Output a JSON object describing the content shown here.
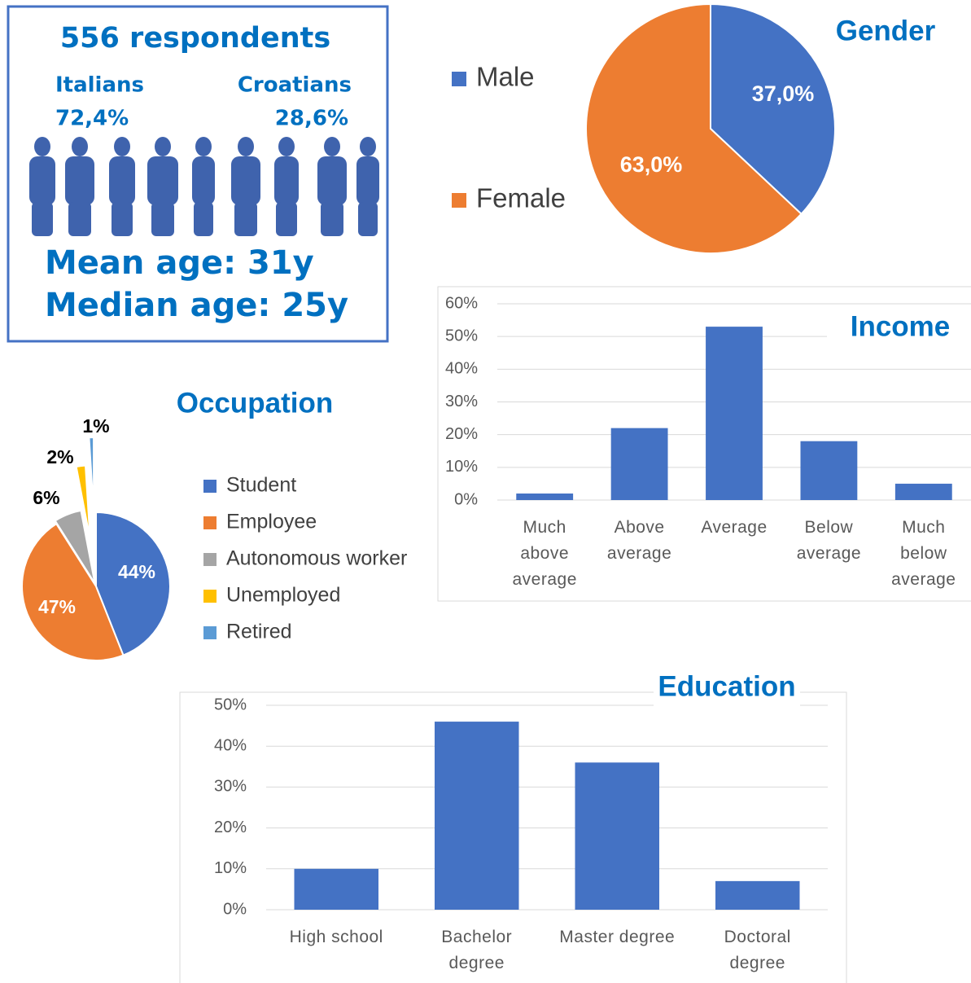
{
  "info": {
    "respondents": "556 respondents",
    "italians": "Italians",
    "italians_share": "72,4%",
    "croatians": "Croatians",
    "croatians_share": "28,6%",
    "mean_age": "Mean age: 31y",
    "median_age": "Median age: 25y"
  },
  "chart_data": [
    {
      "type": "pie",
      "title": "Gender",
      "categories": [
        "Male",
        "Female"
      ],
      "values": [
        37.0,
        63.0
      ],
      "value_labels": [
        "37,0%",
        "63,0%"
      ],
      "colors": [
        "#4472c4",
        "#ed7d31"
      ]
    },
    {
      "type": "pie",
      "title": "Occupation",
      "categories": [
        "Student",
        "Employee",
        "Autonomous worker",
        "Unemployed",
        "Retired"
      ],
      "values": [
        44,
        47,
        6,
        2,
        1
      ],
      "value_labels": [
        "44%",
        "47%",
        "6%",
        "2%",
        "1%"
      ],
      "colors": [
        "#4472c4",
        "#ed7d31",
        "#a5a5a5",
        "#ffc000",
        "#5b9bd5"
      ]
    },
    {
      "type": "bar",
      "title": "Income",
      "categories": [
        "Much above average",
        "Above average",
        "Average",
        "Below average",
        "Much below average"
      ],
      "values": [
        2,
        22,
        53,
        18,
        5
      ],
      "color": "#4472c4",
      "ylim": [
        0,
        60
      ],
      "yticks": [
        {
          "value": 0,
          "label": "0%"
        },
        {
          "value": 10,
          "label": "10%"
        },
        {
          "value": 20,
          "label": "20%"
        },
        {
          "value": 30,
          "label": "30%"
        },
        {
          "value": 40,
          "label": "40%"
        },
        {
          "value": 50,
          "label": "50%"
        },
        {
          "value": 60,
          "label": "60%"
        }
      ],
      "grid": true
    },
    {
      "type": "bar",
      "title": "Education",
      "categories": [
        "High school",
        "Bachelor degree",
        "Master degree",
        "Doctoral degree"
      ],
      "values": [
        10,
        46,
        36,
        7
      ],
      "color": "#4472c4",
      "ylim": [
        0,
        50
      ],
      "yticks": [
        {
          "value": 0,
          "label": "0%"
        },
        {
          "value": 10,
          "label": "10%"
        },
        {
          "value": 20,
          "label": "20%"
        },
        {
          "value": 30,
          "label": "30%"
        },
        {
          "value": 40,
          "label": "40%"
        },
        {
          "value": 50,
          "label": "50%"
        }
      ],
      "grid": true
    }
  ]
}
